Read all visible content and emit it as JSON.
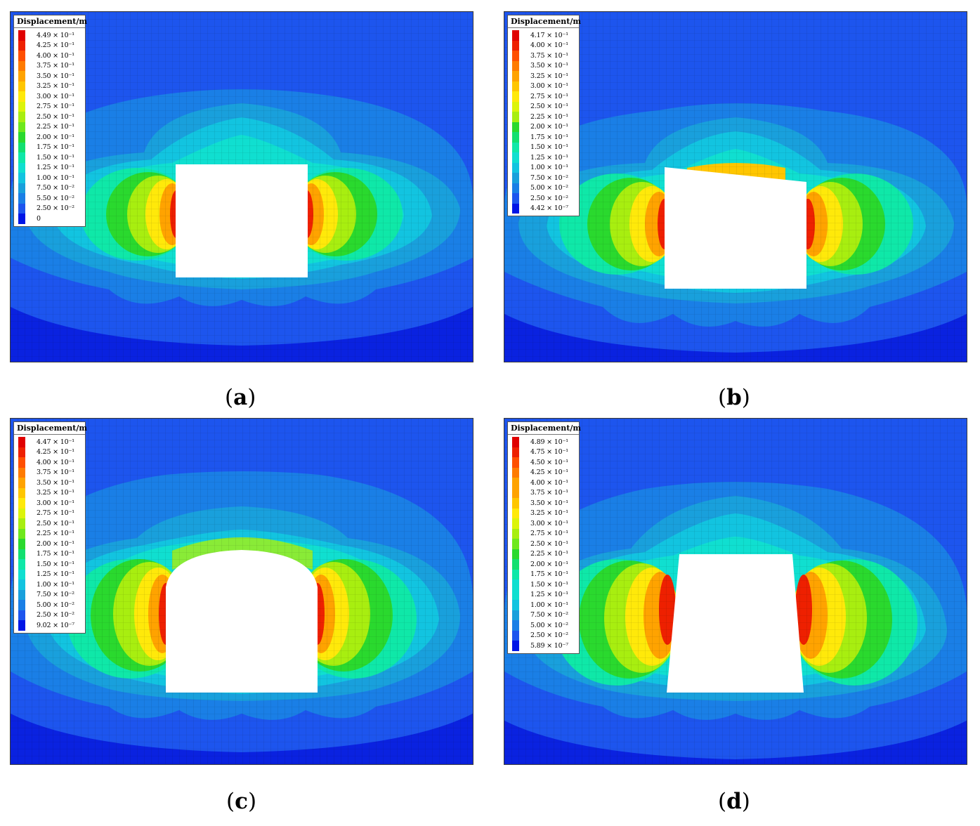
{
  "legend_title": "Displacement/m",
  "colors": [
    "#0015e6",
    "#1d55ee",
    "#1a7fe6",
    "#19a0dc",
    "#12c4e0",
    "#10dfd0",
    "#0fe8a8",
    "#12e070",
    "#2ad92e",
    "#6ee81c",
    "#a8ee10",
    "#dcf40a",
    "#ffe90a",
    "#ffc600",
    "#ffa300",
    "#ff7b00",
    "#ff4f00",
    "#ee2000",
    "#e00000"
  ],
  "panels": [
    {
      "caption": "a",
      "legend": [
        "4.49 × 10⁻¹",
        "4.25 × 10⁻¹",
        "4.00 × 10⁻¹",
        "3.75 × 10⁻¹",
        "3.50 × 10⁻¹",
        "3.25 × 10⁻¹",
        "3.00 × 10⁻¹",
        "2.75 × 10⁻¹",
        "2.50 × 10⁻¹",
        "2.25 × 10⁻¹",
        "2.00 × 10⁻¹",
        "1.75 × 10⁻¹",
        "1.50 × 10⁻¹",
        "1.25 × 10⁻¹",
        "1.00 × 10⁻¹",
        "7.50 × 10⁻²",
        "5.50 × 10⁻²",
        "2.50 × 10⁻²",
        "0"
      ],
      "opening": "rectangle"
    },
    {
      "caption": "b",
      "legend": [
        "4.17 × 10⁻¹",
        "4.00 × 10⁻¹",
        "3.75 × 10⁻¹",
        "3.50 × 10⁻¹",
        "3.25 × 10⁻¹",
        "3.00 × 10⁻¹",
        "2.75 × 10⁻¹",
        "2.50 × 10⁻¹",
        "2.25 × 10⁻¹",
        "2.00 × 10⁻¹",
        "1.75 × 10⁻¹",
        "1.50 × 10⁻¹",
        "1.25 × 10⁻¹",
        "1.00 × 10⁻¹",
        "7.50 × 10⁻²",
        "5.00 × 10⁻²",
        "2.50 × 10⁻²",
        "4.42 × 10⁻⁷"
      ],
      "opening": "sloped-roof"
    },
    {
      "caption": "c",
      "legend": [
        "4.47 × 10⁻¹",
        "4.25 × 10⁻¹",
        "4.00 × 10⁻¹",
        "3.75 × 10⁻¹",
        "3.50 × 10⁻¹",
        "3.25 × 10⁻¹",
        "3.00 × 10⁻¹",
        "2.75 × 10⁻¹",
        "2.50 × 10⁻¹",
        "2.25 × 10⁻¹",
        "2.00 × 10⁻¹",
        "1.75 × 10⁻¹",
        "1.50 × 10⁻¹",
        "1.25 × 10⁻¹",
        "1.00 × 10⁻¹",
        "7.50 × 10⁻²",
        "5.00 × 10⁻²",
        "2.50 × 10⁻²",
        "9.02 × 10⁻⁷"
      ],
      "opening": "arched"
    },
    {
      "caption": "d",
      "legend": [
        "4.89 × 10⁻¹",
        "4.75 × 10⁻¹",
        "4.50 × 10⁻¹",
        "4.25 × 10⁻¹",
        "4.00 × 10⁻¹",
        "3.75 × 10⁻¹",
        "3.50 × 10⁻¹",
        "3.25 × 10⁻¹",
        "3.00 × 10⁻¹",
        "2.75 × 10⁻¹",
        "2.50 × 10⁻¹",
        "2.25 × 10⁻¹",
        "2.00 × 10⁻¹",
        "1.75 × 10⁻¹",
        "1.50 × 10⁻¹",
        "1.25 × 10⁻¹",
        "1.00 × 10⁻¹",
        "7.50 × 10⁻²",
        "5.00 × 10⁻²",
        "2.50 × 10⁻²",
        "5.89 × 10⁻⁷"
      ],
      "opening": "trapezoid"
    }
  ]
}
